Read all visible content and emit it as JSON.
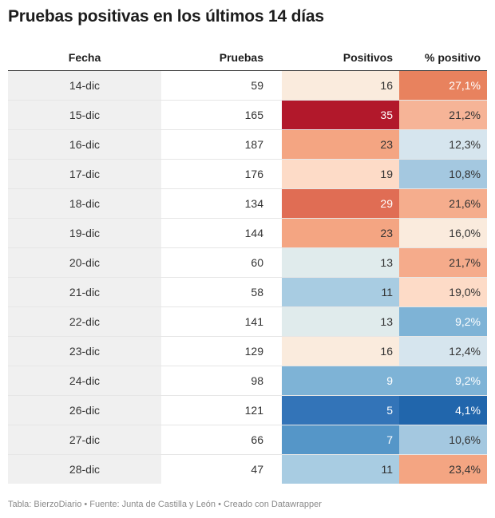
{
  "title": "Pruebas positivas en los últimos 14 días",
  "footer": "Tabla: BierzoDiario • Fuente: Junta de Castilla y León • Creado con Datawrapper",
  "chart_data": {
    "type": "table",
    "columns": [
      "Fecha",
      "Pruebas",
      "Positivos",
      "% positivo"
    ],
    "rows": [
      {
        "fecha": "14-dic",
        "pruebas": "59",
        "positivos": "16",
        "pct": "27,1%",
        "pos_color": "#faebdd",
        "pct_color": "#e8825e",
        "pos_text": "#333333",
        "pct_text": "#ffffff"
      },
      {
        "fecha": "15-dic",
        "pruebas": "165",
        "positivos": "35",
        "pct": "21,2%",
        "pos_color": "#b2182b",
        "pct_color": "#f6b497",
        "pos_text": "#ffffff",
        "pct_text": "#333333"
      },
      {
        "fecha": "16-dic",
        "pruebas": "187",
        "positivos": "23",
        "pct": "12,3%",
        "pos_color": "#f4a582",
        "pct_color": "#d6e5ee",
        "pos_text": "#333333",
        "pct_text": "#333333"
      },
      {
        "fecha": "17-dic",
        "pruebas": "176",
        "positivos": "19",
        "pct": "10,8%",
        "pos_color": "#fddbc7",
        "pct_color": "#a4c8e0",
        "pos_text": "#333333",
        "pct_text": "#333333"
      },
      {
        "fecha": "18-dic",
        "pruebas": "134",
        "positivos": "29",
        "pct": "21,6%",
        "pos_color": "#e06d54",
        "pct_color": "#f5ad8d",
        "pos_text": "#ffffff",
        "pct_text": "#333333"
      },
      {
        "fecha": "19-dic",
        "pruebas": "144",
        "positivos": "23",
        "pct": "16,0%",
        "pos_color": "#f4a582",
        "pct_color": "#faebdd",
        "pos_text": "#333333",
        "pct_text": "#333333"
      },
      {
        "fecha": "20-dic",
        "pruebas": "60",
        "positivos": "13",
        "pct": "21,7%",
        "pos_color": "#e0ebec",
        "pct_color": "#f5ab8b",
        "pos_text": "#333333",
        "pct_text": "#333333"
      },
      {
        "fecha": "21-dic",
        "pruebas": "58",
        "positivos": "11",
        "pct": "19,0%",
        "pos_color": "#a8cce2",
        "pct_color": "#fddbc7",
        "pos_text": "#333333",
        "pct_text": "#333333"
      },
      {
        "fecha": "22-dic",
        "pruebas": "141",
        "positivos": "13",
        "pct": "9,2%",
        "pos_color": "#e0ebec",
        "pct_color": "#7eb3d6",
        "pos_text": "#333333",
        "pct_text": "#ffffff"
      },
      {
        "fecha": "23-dic",
        "pruebas": "129",
        "positivos": "16",
        "pct": "12,4%",
        "pos_color": "#faebdd",
        "pct_color": "#d6e5ee",
        "pos_text": "#333333",
        "pct_text": "#333333"
      },
      {
        "fecha": "24-dic",
        "pruebas": "98",
        "positivos": "9",
        "pct": "9,2%",
        "pos_color": "#7eb3d6",
        "pct_color": "#7eb3d6",
        "pos_text": "#ffffff",
        "pct_text": "#ffffff"
      },
      {
        "fecha": "26-dic",
        "pruebas": "121",
        "positivos": "5",
        "pct": "4,1%",
        "pos_color": "#3374b8",
        "pct_color": "#2166ac",
        "pos_text": "#ffffff",
        "pct_text": "#ffffff"
      },
      {
        "fecha": "27-dic",
        "pruebas": "66",
        "positivos": "7",
        "pct": "10,6%",
        "pos_color": "#5596c8",
        "pct_color": "#a4c8e0",
        "pos_text": "#ffffff",
        "pct_text": "#333333"
      },
      {
        "fecha": "28-dic",
        "pruebas": "47",
        "positivos": "11",
        "pct": "23,4%",
        "pos_color": "#a8cce2",
        "pct_color": "#f4a582",
        "pos_text": "#333333",
        "pct_text": "#333333"
      }
    ]
  }
}
